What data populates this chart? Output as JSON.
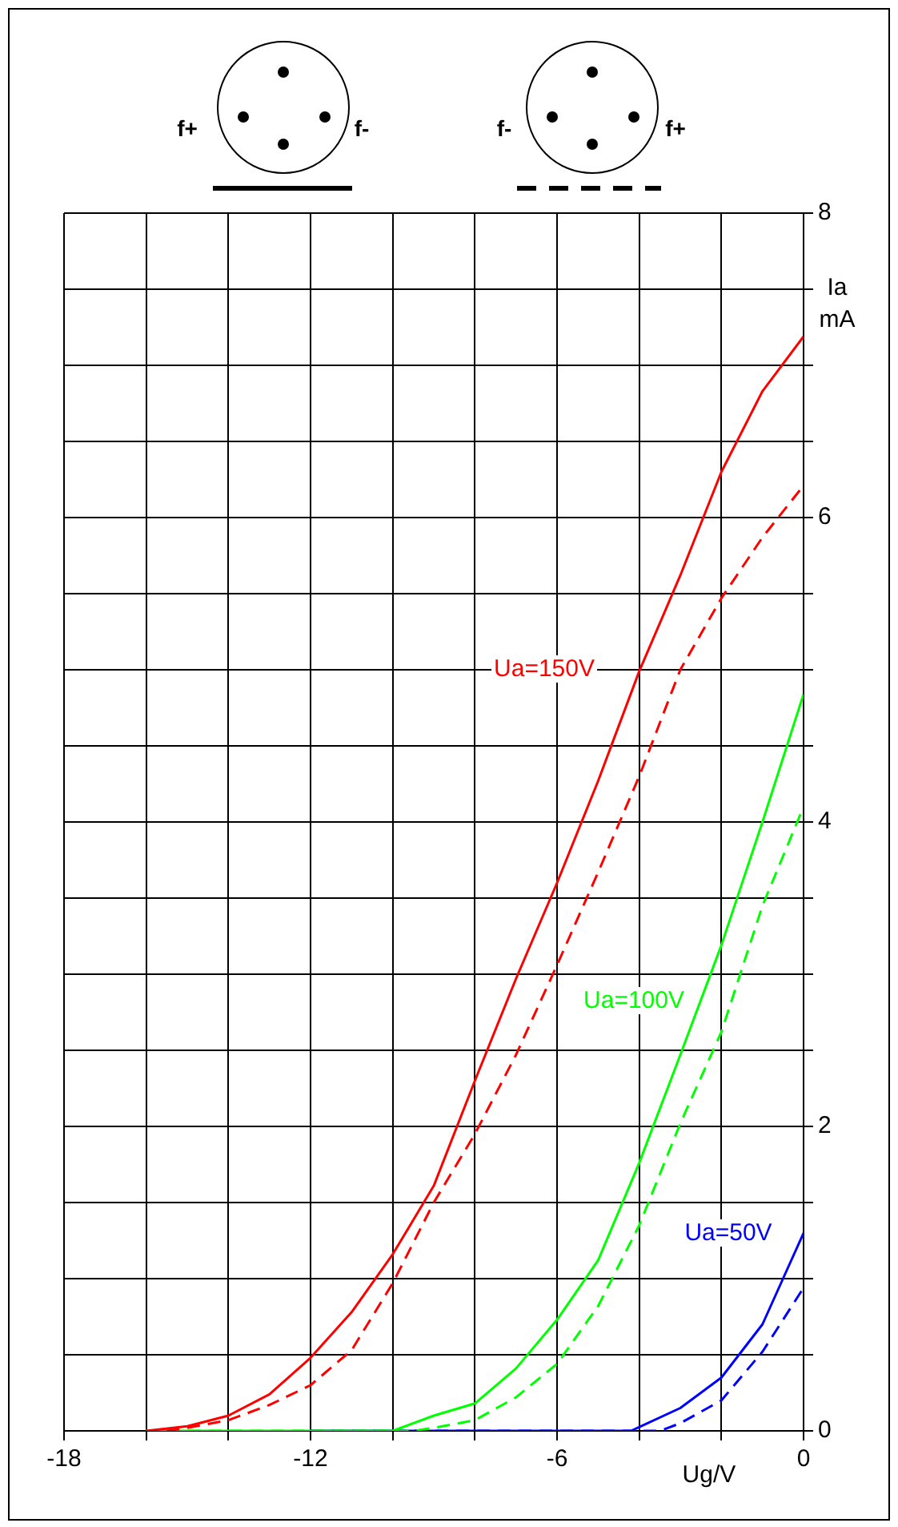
{
  "chart_data": {
    "type": "line",
    "xlabel": "Ug/V",
    "ylabel": "Ia mA",
    "xlim": [
      -18,
      0
    ],
    "xticks": [
      -18,
      {
        "value": -16,
        "label": null
      },
      {
        "value": -14,
        "label": null
      },
      -12,
      {
        "value": -10,
        "label": null
      },
      {
        "value": -8,
        "label": null
      },
      -6,
      {
        "value": -4,
        "label": null
      },
      {
        "value": -2,
        "label": null
      },
      0
    ],
    "ylim": [
      0,
      8
    ],
    "yticks": [
      0,
      {
        "value": 0.5,
        "label": null
      },
      {
        "value": 1,
        "label": null
      },
      {
        "value": 1.5,
        "label": null
      },
      2,
      {
        "value": 2.5,
        "label": null
      },
      {
        "value": 3,
        "label": null
      },
      {
        "value": 3.5,
        "label": null
      },
      4,
      {
        "value": 4.5,
        "label": null
      },
      {
        "value": 5,
        "label": null
      },
      {
        "value": 5.5,
        "label": null
      },
      6,
      {
        "value": 6.5,
        "label": null
      },
      {
        "value": 7,
        "label": null
      },
      {
        "value": 7.5,
        "label": null
      },
      8
    ],
    "grid": true,
    "legend": false,
    "marker": "none",
    "series": [
      {
        "color": "#ff0000",
        "line_style": "solid",
        "x": [
          -16,
          -15,
          -14,
          -13,
          -12,
          -11,
          -10,
          -9,
          -8,
          -7,
          -6,
          -5,
          -4,
          -3,
          -2,
          -1,
          0
        ],
        "values": [
          0,
          0.03,
          0.1,
          0.24,
          0.48,
          0.78,
          1.16,
          1.61,
          2.3,
          2.97,
          3.6,
          4.27,
          4.99,
          5.62,
          6.3,
          6.83,
          7.19
        ]
      },
      {
        "color": "#ff0000",
        "line_style": "dashed",
        "x": [
          -15.5,
          -15,
          -14,
          -13,
          -12,
          -11,
          -10,
          -9,
          -8,
          -7,
          -6,
          -5,
          -4,
          -3,
          -2,
          -1,
          0
        ],
        "values": [
          0,
          0.02,
          0.07,
          0.17,
          0.3,
          0.53,
          0.97,
          1.5,
          1.95,
          2.47,
          3.06,
          3.67,
          4.3,
          5.0,
          5.47,
          5.87,
          6.21
        ]
      },
      {
        "color": "#00ff00",
        "line_style": "solid",
        "x": [
          -16,
          -10,
          -9,
          -8,
          -7,
          -6,
          -5,
          -4,
          -3,
          -2,
          -1,
          0
        ],
        "values": [
          0,
          0,
          0.1,
          0.18,
          0.41,
          0.73,
          1.12,
          1.76,
          2.47,
          3.19,
          4.0,
          4.84
        ]
      },
      {
        "color": "#00ff00",
        "line_style": "dashed",
        "x": [
          -16,
          -9.5,
          -9,
          -8,
          -7,
          -6,
          -5,
          -4,
          -3,
          -2,
          -1,
          0
        ],
        "values": [
          0,
          0,
          0.02,
          0.07,
          0.22,
          0.44,
          0.82,
          1.35,
          2.02,
          2.62,
          3.45,
          4.1
        ]
      },
      {
        "color": "#0000ff",
        "line_style": "solid",
        "x": [
          -12,
          -4.2,
          -3,
          -2,
          -1,
          -0.5,
          0
        ],
        "values": [
          0,
          0,
          0.15,
          0.35,
          0.7,
          1.0,
          1.3
        ]
      },
      {
        "color": "#0000ff",
        "line_style": "dashed",
        "x": [
          -12,
          -3.5,
          -3,
          -2,
          -1,
          0
        ],
        "values": [
          0,
          0,
          0.05,
          0.2,
          0.52,
          0.94
        ]
      }
    ],
    "annotations": [
      "Ua=150V",
      "Ua=100V",
      "Ua=50V",
      "f+",
      "f-",
      "f-",
      "f+"
    ]
  }
}
